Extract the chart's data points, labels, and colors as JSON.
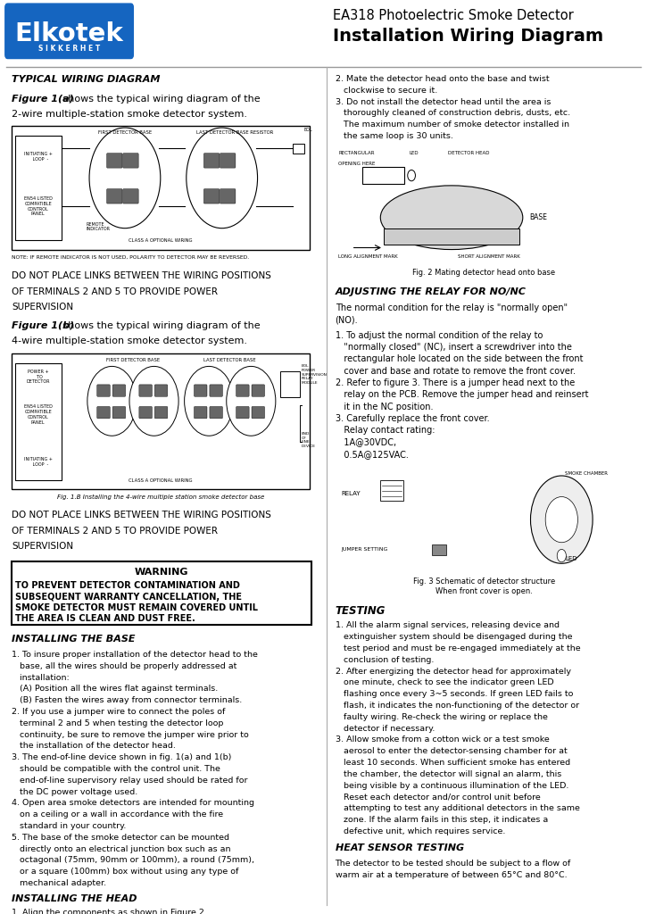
{
  "title_line1": "EA318 Photoelectric Smoke Detector",
  "title_line2": "Installation Wiring Diagram",
  "logo_text": "Elkotek",
  "logo_sub": "SIKKERHET",
  "logo_color": "#1565C0",
  "bg_color": "#ffffff",
  "section_typical": "TYPICAL WIRING DIAGRAM",
  "fig1a_intro": "Figure 1(a) shows the typical wiring diagram of the\n2-wire multiple-station smoke detector system.",
  "fig1b_intro": "Figure 1(b) shows the typical wiring diagram of the\n4-wire multiple-station smoke detector system.",
  "do_not_place": "DO NOT PLACE LINKS BETWEEN THE WIRING POSITIONS\nOF TERMINALS 2 AND 5 TO PROVIDE POWER\nSUPERVISION",
  "warning_title": "WARNING",
  "warning_text": "TO PREVENT DETECTOR CONTAMINATION AND\nSUBSEQUENT WARRANTY CANCELLATION, THE\nSMOKE DETECTOR MUST REMAIN COVERED UNTIL\nTHE AREA IS CLEAN AND DUST FREE.",
  "installing_base": "INSTALLING THE BASE",
  "installing_head": "INSTALLING THE HEAD",
  "testing_title": "TESTING",
  "heat_sensor": "HEAT SENSOR TESTING",
  "install_base_text": "1. To insure proper installation of the detector head to the\n   base, all the wires should be properly addressed at\n   installation:\n   (A) Position all the wires flat against terminals.\n   (B) Fasten the wires away from connector terminals.\n2. If you use a jumper wire to connect the poles of\n   terminal 2 and 5 when testing the detector loop\n   continuity, be sure to remove the jumper wire prior to\n   the installation of the detector head.\n3. The end-of-line device shown in fig. 1(a) and 1(b)\n   should be compatible with the control unit. The\n   end-of-line supervisory relay used should be rated for\n   the DC power voltage used.\n4. Open area smoke detectors are intended for mounting\n   on a ceiling or a wall in accordance with the fire\n   standard in your country.\n5. The base of the smoke detector can be mounted\n   directly onto an electrical junction box such as an\n   octagonal (75mm, 90mm or 100mm), a round (75mm),\n   or a square (100mm) box without using any type of\n   mechanical adapter.",
  "install_head_text": "1. Align the components as shown in Figure 2.",
  "install_head_text2": "2. Mate the detector head onto the base and twist\n   clockwise to secure it.\n3. Do not install the detector head until the area is\n   thoroughly cleaned of construction debris, dusts, etc.\n   The maximum number of smoke detector installed in\n   the same loop is 30 units.",
  "adjusting_relay_title": "ADJUSTING THE RELAY FOR NO/NC",
  "adjusting_relay_intro": "The normal condition for the relay is \"normally open\"\n(NO).",
  "adjusting_relay_text": "1. To adjust the normal condition of the relay to\n   \"normally closed\" (NC), insert a screwdriver into the\n   rectangular hole located on the side between the front\n   cover and base and rotate to remove the front cover.\n2. Refer to figure 3. There is a jumper head next to the\n   relay on the PCB. Remove the jumper head and reinsert\n   it in the NC position.\n3. Carefully replace the front cover.\n   Relay contact rating:\n   1A@30VDC,\n   0.5A@125VAC.",
  "testing_text": "1. All the alarm signal services, releasing device and\n   extinguisher system should be disengaged during the\n   test period and must be re-engaged immediately at the\n   conclusion of testing.\n2. After energizing the detector head for approximately\n   one minute, check to see the indicator green LED\n   flashing once every 3~5 seconds. If green LED fails to\n   flash, it indicates the non-functioning of the detector or\n   faulty wiring. Re-check the wiring or replace the\n   detector if necessary.\n3. Allow smoke from a cotton wick or a test smoke\n   aerosol to enter the detector-sensing chamber for at\n   least 10 seconds. When sufficient smoke has entered\n   the chamber, the detector will signal an alarm, this\n   being visible by a continuous illumination of the LED.\n   Reset each detector and/or control unit before\n   attempting to test any additional detectors in the same\n   zone. If the alarm fails in this step, it indicates a\n   defective unit, which requires service.",
  "heat_sensor_text": "The detector to be tested should be subject to a flow of\nwarm air at a temperature of between 65°C and 80°C.",
  "fig1b_caption": "Fig. 1.B Installing the 4-wire multiple station smoke detector base",
  "fig2_caption": "Fig. 2 Mating detector head onto base",
  "fig3_caption": "Fig. 3 Schematic of detector structure\nWhen front cover is open.",
  "note_text": "NOTE: IF REMOTE INDICATOR IS NOT USED, POLARITY TO DETECTOR MAY BE REVERSED."
}
